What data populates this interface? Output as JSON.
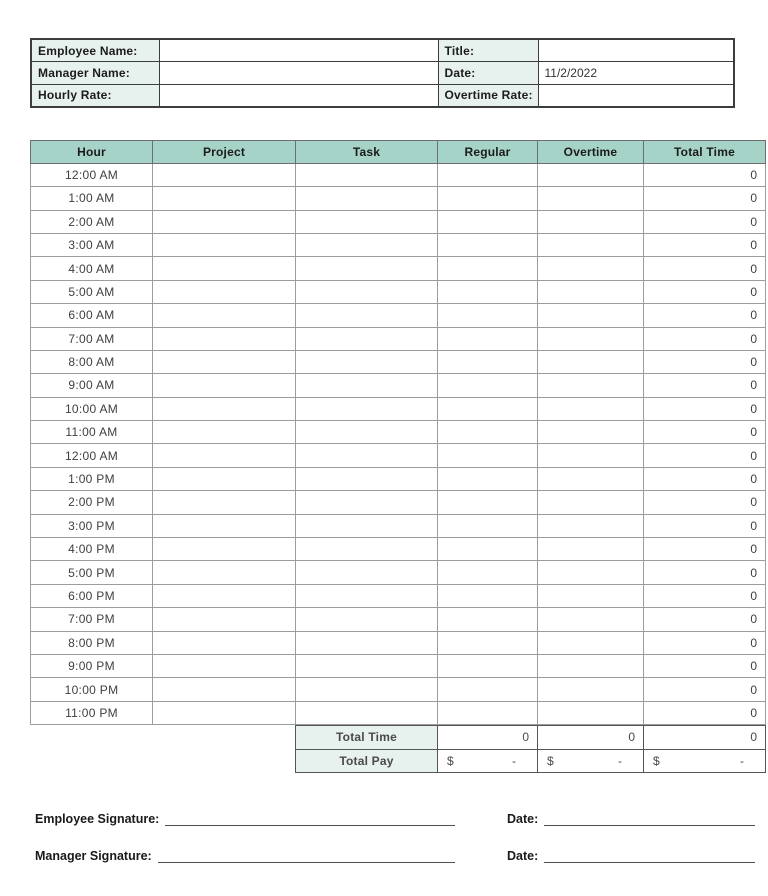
{
  "colors": {
    "header_teal": "#a6d3c8",
    "label_mint": "#e7f2ee"
  },
  "info": {
    "rows": [
      {
        "l_label": "Employee Name:",
        "l_value": "",
        "r_label": "Title:",
        "r_value": ""
      },
      {
        "l_label": "Manager Name:",
        "l_value": "",
        "r_label": "Date:",
        "r_value": "11/2/2022"
      },
      {
        "l_label": "Hourly Rate:",
        "l_value": "",
        "r_label": "Overtime Rate:",
        "r_value": ""
      }
    ]
  },
  "table": {
    "columns": [
      "Hour",
      "Project",
      "Task",
      "Regular",
      "Overtime",
      "Total Time"
    ],
    "rows": [
      {
        "hour": "12:00 AM",
        "project": "",
        "task": "",
        "regular": "",
        "overtime": "",
        "total": "0"
      },
      {
        "hour": "1:00 AM",
        "project": "",
        "task": "",
        "regular": "",
        "overtime": "",
        "total": "0"
      },
      {
        "hour": "2:00 AM",
        "project": "",
        "task": "",
        "regular": "",
        "overtime": "",
        "total": "0"
      },
      {
        "hour": "3:00 AM",
        "project": "",
        "task": "",
        "regular": "",
        "overtime": "",
        "total": "0"
      },
      {
        "hour": "4:00 AM",
        "project": "",
        "task": "",
        "regular": "",
        "overtime": "",
        "total": "0"
      },
      {
        "hour": "5:00 AM",
        "project": "",
        "task": "",
        "regular": "",
        "overtime": "",
        "total": "0"
      },
      {
        "hour": "6:00 AM",
        "project": "",
        "task": "",
        "regular": "",
        "overtime": "",
        "total": "0"
      },
      {
        "hour": "7:00 AM",
        "project": "",
        "task": "",
        "regular": "",
        "overtime": "",
        "total": "0"
      },
      {
        "hour": "8:00 AM",
        "project": "",
        "task": "",
        "regular": "",
        "overtime": "",
        "total": "0"
      },
      {
        "hour": "9:00 AM",
        "project": "",
        "task": "",
        "regular": "",
        "overtime": "",
        "total": "0"
      },
      {
        "hour": "10:00 AM",
        "project": "",
        "task": "",
        "regular": "",
        "overtime": "",
        "total": "0"
      },
      {
        "hour": "11:00 AM",
        "project": "",
        "task": "",
        "regular": "",
        "overtime": "",
        "total": "0"
      },
      {
        "hour": "12:00 AM",
        "project": "",
        "task": "",
        "regular": "",
        "overtime": "",
        "total": "0"
      },
      {
        "hour": "1:00 PM",
        "project": "",
        "task": "",
        "regular": "",
        "overtime": "",
        "total": "0"
      },
      {
        "hour": "2:00 PM",
        "project": "",
        "task": "",
        "regular": "",
        "overtime": "",
        "total": "0"
      },
      {
        "hour": "3:00 PM",
        "project": "",
        "task": "",
        "regular": "",
        "overtime": "",
        "total": "0"
      },
      {
        "hour": "4:00 PM",
        "project": "",
        "task": "",
        "regular": "",
        "overtime": "",
        "total": "0"
      },
      {
        "hour": "5:00 PM",
        "project": "",
        "task": "",
        "regular": "",
        "overtime": "",
        "total": "0"
      },
      {
        "hour": "6:00 PM",
        "project": "",
        "task": "",
        "regular": "",
        "overtime": "",
        "total": "0"
      },
      {
        "hour": "7:00 PM",
        "project": "",
        "task": "",
        "regular": "",
        "overtime": "",
        "total": "0"
      },
      {
        "hour": "8:00 PM",
        "project": "",
        "task": "",
        "regular": "",
        "overtime": "",
        "total": "0"
      },
      {
        "hour": "9:00 PM",
        "project": "",
        "task": "",
        "regular": "",
        "overtime": "",
        "total": "0"
      },
      {
        "hour": "10:00 PM",
        "project": "",
        "task": "",
        "regular": "",
        "overtime": "",
        "total": "0"
      },
      {
        "hour": "11:00 PM",
        "project": "",
        "task": "",
        "regular": "",
        "overtime": "",
        "total": "0"
      }
    ]
  },
  "totals": {
    "time_label": "Total Time",
    "time": [
      "0",
      "0",
      "0"
    ],
    "pay_label": "Total Pay",
    "pay": [
      {
        "currency": "$",
        "amount": "-"
      },
      {
        "currency": "$",
        "amount": "-"
      },
      {
        "currency": "$",
        "amount": "-"
      }
    ]
  },
  "signatures": {
    "employee_label": "Employee Signature:",
    "employee_date_label": "Date:",
    "manager_label": "Manager Signature:",
    "manager_date_label": "Date:"
  }
}
